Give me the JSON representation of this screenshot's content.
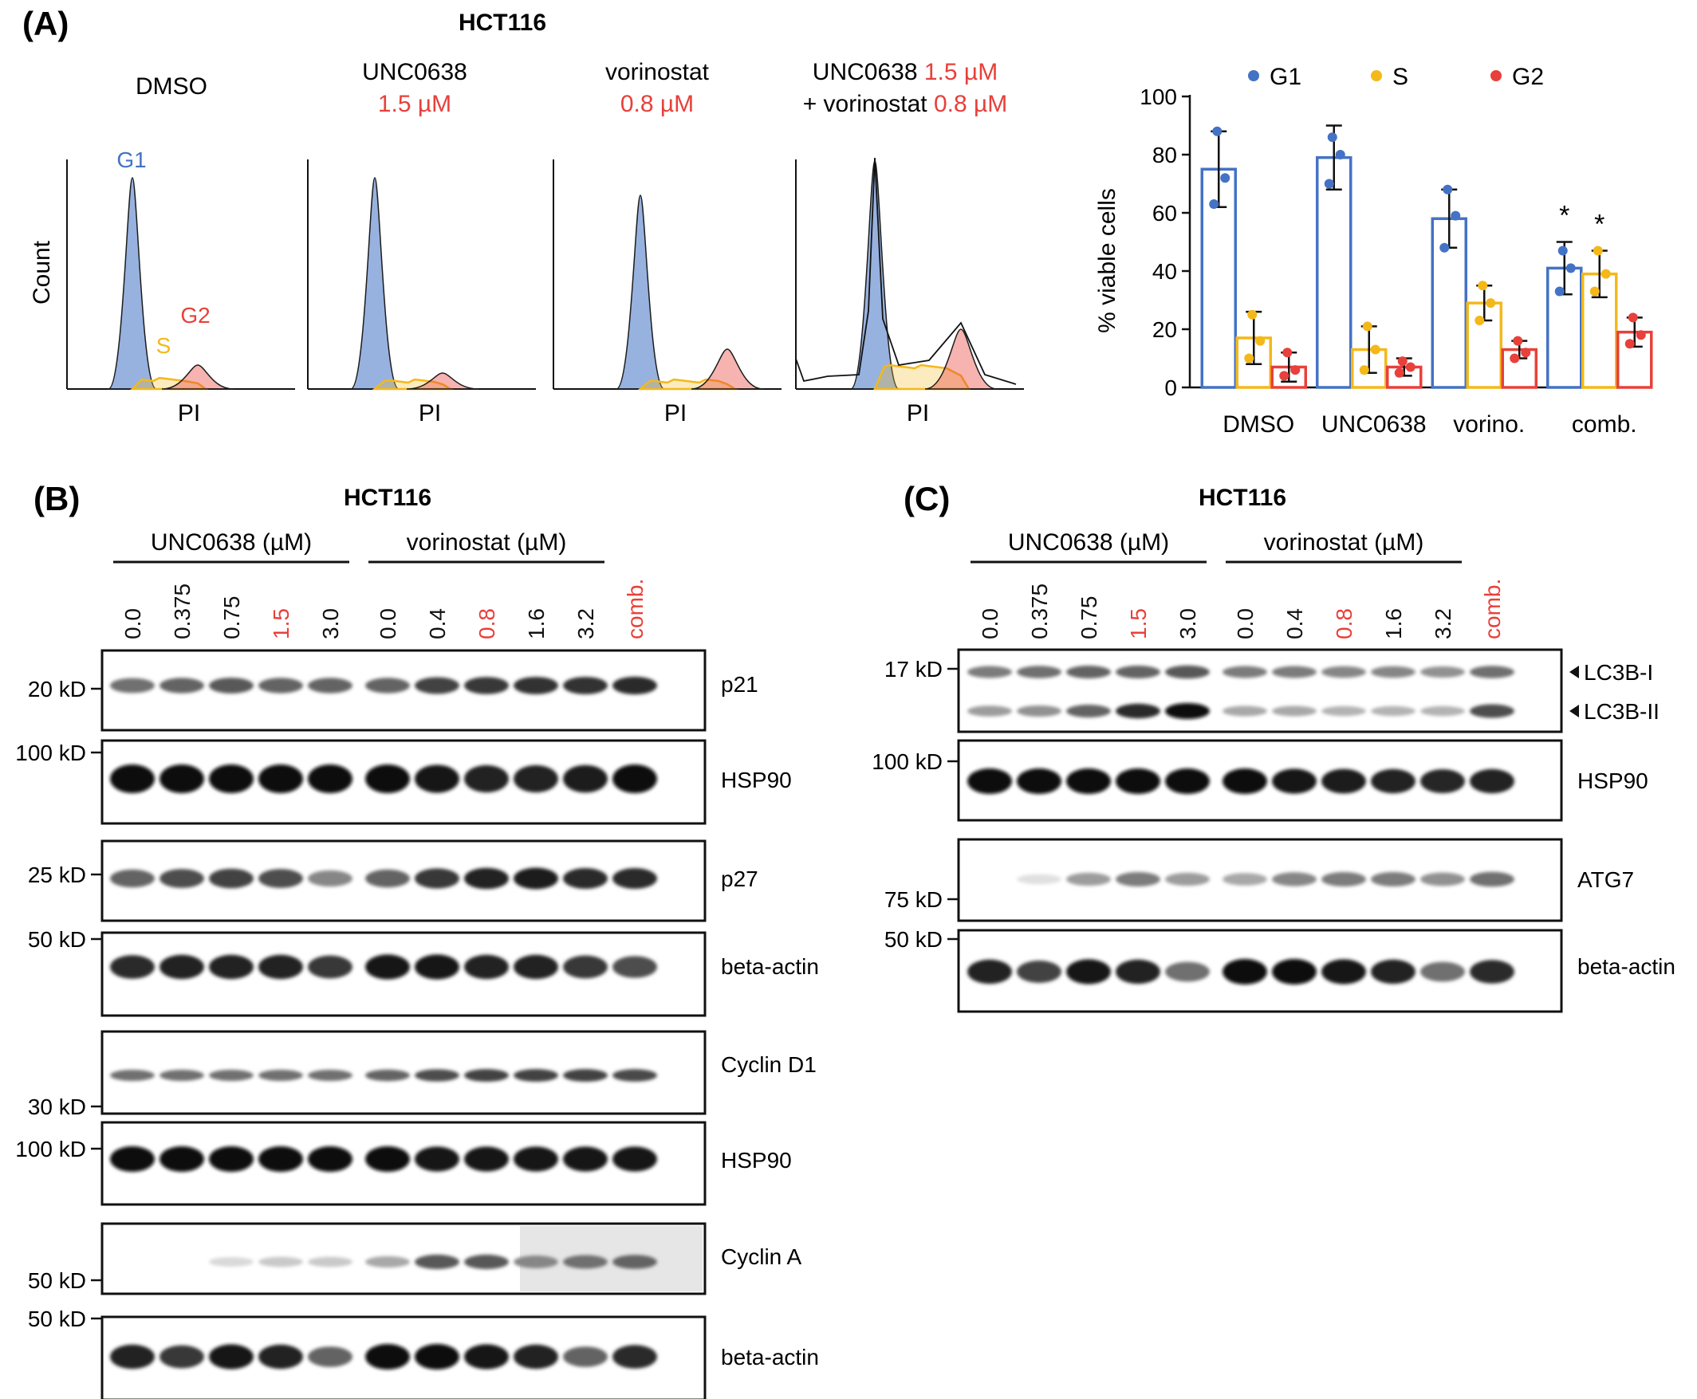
{
  "colors": {
    "g1": "#4472c4",
    "s": "#f4b81a",
    "g2": "#e8403a",
    "red_text": "#e8403a",
    "black": "#111111"
  },
  "panel_a": {
    "label": "(A)",
    "cell_line": "HCT116",
    "flow": [
      {
        "name": "DMSO",
        "line1": "DMSO",
        "line1_red": "",
        "line2": "",
        "line2_red": ""
      },
      {
        "name": "UNC0638",
        "line1": "UNC0638",
        "line1_red": "",
        "line2": "",
        "line2_red": "1.5 µM"
      },
      {
        "name": "vorinostat",
        "line1": "vorinostat",
        "line1_red": "",
        "line2": "",
        "line2_red": "0.8 µM"
      },
      {
        "name": "combination",
        "line1": "UNC0638 ",
        "line1_red": "1.5 µM",
        "line2": "+ vorinostat ",
        "line2_red": "0.8 µM"
      }
    ],
    "count_label": "Count",
    "x_label": "PI",
    "peak_labels": {
      "g1": "G1",
      "s": "S",
      "g2": "G2"
    }
  },
  "chart_data": {
    "type": "bar",
    "categories": [
      "DMSO",
      "UNC0638",
      "vorino.",
      "comb."
    ],
    "series": [
      {
        "name": "G1",
        "values": [
          75,
          79,
          58,
          41
        ],
        "error": [
          13,
          11,
          10,
          9
        ],
        "points": [
          [
            88,
            72,
            63
          ],
          [
            86,
            80,
            70
          ],
          [
            68,
            59,
            48
          ],
          [
            47,
            41,
            33
          ]
        ]
      },
      {
        "name": "S",
        "values": [
          17,
          13,
          29,
          39
        ],
        "error": [
          9,
          8,
          6,
          8
        ],
        "points": [
          [
            25,
            16,
            10
          ],
          [
            21,
            13,
            6
          ],
          [
            35,
            29,
            23
          ],
          [
            47,
            39,
            33
          ]
        ]
      },
      {
        "name": "G2",
        "values": [
          7,
          7,
          13,
          19
        ],
        "error": [
          5,
          3,
          3,
          5
        ],
        "points": [
          [
            12,
            6,
            4
          ],
          [
            9,
            7,
            5
          ],
          [
            16,
            12,
            10
          ],
          [
            24,
            18,
            15
          ]
        ]
      }
    ],
    "ylabel": "% viable cells",
    "xlabel": "",
    "ylim": [
      0,
      100
    ],
    "yticks": [
      "0",
      "20",
      "40",
      "60",
      "80",
      "100"
    ],
    "significance": {
      "category": "comb.",
      "series": [
        "G1",
        "S"
      ],
      "mark": "*"
    },
    "legend_position": "top"
  },
  "panel_b": {
    "label": "(B)",
    "cell_line": "HCT116",
    "group1_header": "UNC0638 (µM)",
    "group2_header": "vorinostat (µM)",
    "lanes": [
      {
        "text": "0.0",
        "red": false
      },
      {
        "text": "0.375",
        "red": false
      },
      {
        "text": "0.75",
        "red": false
      },
      {
        "text": "1.5",
        "red": true
      },
      {
        "text": "3.0",
        "red": false
      },
      {
        "text": "0.0",
        "red": false
      },
      {
        "text": "0.4",
        "red": false
      },
      {
        "text": "0.8",
        "red": true
      },
      {
        "text": "1.6",
        "red": false
      },
      {
        "text": "3.2",
        "red": false
      },
      {
        "text": "comb.",
        "red": true
      }
    ],
    "blots": [
      {
        "protein": "p21",
        "markers": [
          "20 kD"
        ],
        "intensity": [
          0.55,
          0.6,
          0.65,
          0.6,
          0.6,
          0.6,
          0.75,
          0.8,
          0.82,
          0.82,
          0.85
        ]
      },
      {
        "protein": "HSP90",
        "markers": [
          "100 kD"
        ],
        "intensity": [
          1,
          1,
          1,
          1,
          1,
          1,
          0.95,
          0.9,
          0.9,
          0.92,
          1
        ]
      },
      {
        "protein": "p27",
        "markers": [
          "25 kD"
        ],
        "intensity": [
          0.6,
          0.7,
          0.75,
          0.7,
          0.45,
          0.6,
          0.8,
          0.9,
          0.92,
          0.85,
          0.85
        ]
      },
      {
        "protein": "beta-actin",
        "markers": [
          "50 kD"
        ],
        "intensity": [
          0.85,
          0.9,
          0.9,
          0.9,
          0.8,
          0.95,
          0.95,
          0.9,
          0.9,
          0.8,
          0.7
        ]
      },
      {
        "protein": "Cyclin D1",
        "markers": [
          "30 kD"
        ],
        "intensity": [
          0.55,
          0.55,
          0.55,
          0.55,
          0.55,
          0.6,
          0.7,
          0.75,
          0.75,
          0.75,
          0.72
        ]
      },
      {
        "protein": "HSP90",
        "markers": [
          "100 kD"
        ],
        "intensity": [
          1,
          1,
          1,
          1,
          1,
          1,
          0.95,
          0.95,
          0.95,
          0.95,
          0.95
        ]
      },
      {
        "protein": "Cyclin A",
        "markers": [
          "50 kD"
        ],
        "intensity": [
          0,
          0,
          0.08,
          0.15,
          0.15,
          0.3,
          0.65,
          0.65,
          0.45,
          0.55,
          0.6
        ]
      },
      {
        "protein": "beta-actin",
        "markers": [
          "50 kD"
        ],
        "intensity": [
          0.9,
          0.8,
          0.95,
          0.9,
          0.6,
          1,
          1,
          0.95,
          0.9,
          0.6,
          0.85
        ]
      }
    ]
  },
  "panel_c": {
    "label": "(C)",
    "cell_line": "HCT116",
    "group1_header": "UNC0638 (µM)",
    "group2_header": "vorinostat (µM)",
    "lanes": [
      {
        "text": "0.0",
        "red": false
      },
      {
        "text": "0.375",
        "red": false
      },
      {
        "text": "0.75",
        "red": false
      },
      {
        "text": "1.5",
        "red": true
      },
      {
        "text": "3.0",
        "red": false
      },
      {
        "text": "0.0",
        "red": false
      },
      {
        "text": "0.4",
        "red": false
      },
      {
        "text": "0.8",
        "red": true
      },
      {
        "text": "1.6",
        "red": false
      },
      {
        "text": "3.2",
        "red": false
      },
      {
        "text": "comb.",
        "red": true
      }
    ],
    "blots": [
      {
        "protein": "LC3B-I",
        "protein2": "LC3B-II",
        "markers": [
          "17 kD"
        ],
        "intensity": [
          0.5,
          0.55,
          0.6,
          0.6,
          0.65,
          0.5,
          0.5,
          0.45,
          0.45,
          0.4,
          0.55
        ],
        "intensity2": [
          0.35,
          0.4,
          0.6,
          0.85,
          1,
          0.3,
          0.3,
          0.25,
          0.25,
          0.25,
          0.7
        ]
      },
      {
        "protein": "HSP90",
        "markers": [
          "100 kD"
        ],
        "intensity": [
          1,
          1,
          1,
          1,
          1,
          1,
          0.95,
          0.92,
          0.9,
          0.88,
          0.9
        ]
      },
      {
        "protein": "ATG7",
        "markers": [
          "75 kD"
        ],
        "intensity": [
          0,
          0.05,
          0.35,
          0.5,
          0.35,
          0.3,
          0.45,
          0.5,
          0.5,
          0.4,
          0.55
        ]
      },
      {
        "protein": "beta-actin",
        "markers": [
          "50 kD"
        ],
        "intensity": [
          0.9,
          0.75,
          0.95,
          0.9,
          0.55,
          1,
          1,
          0.95,
          0.9,
          0.55,
          0.85
        ]
      }
    ]
  }
}
